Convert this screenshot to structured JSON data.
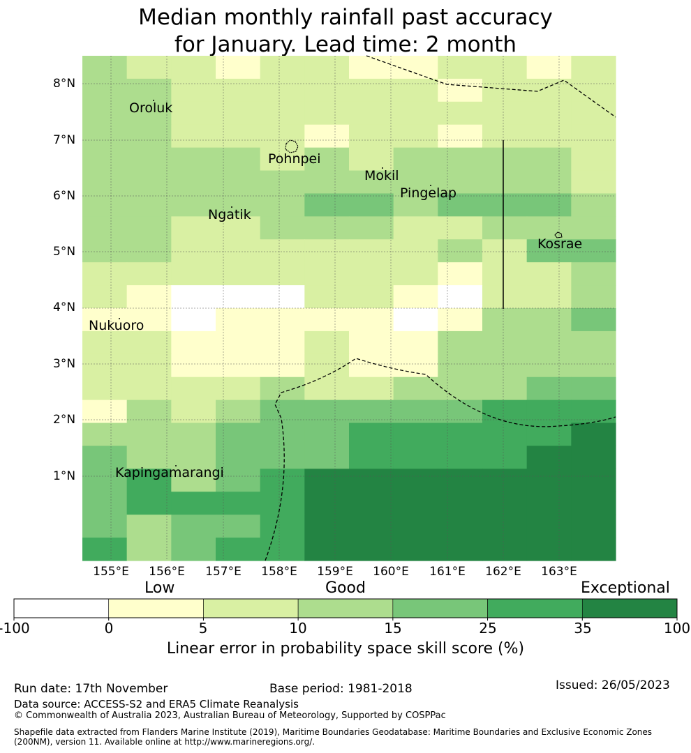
{
  "title": {
    "line1": "Median monthly rainfall past accuracy",
    "line2": "for January. Lead time: 2 month"
  },
  "map": {
    "lat_labels": [
      "8°N",
      "7°N",
      "6°N",
      "5°N",
      "4°N",
      "3°N",
      "2°N",
      "1°N"
    ],
    "lon_labels": [
      "155°E",
      "156°E",
      "157°E",
      "158°E",
      "159°E",
      "160°E",
      "161°E",
      "162°E",
      "163°E"
    ],
    "places": [
      "Oroluk",
      "Pohnpei",
      "Mokil",
      "Pingelap",
      "Ngatik",
      "Kosrae",
      "Nukuoro",
      "Kapingamarangi"
    ],
    "grid_levels": [
      [
        3,
        2,
        2,
        1,
        2,
        2,
        1,
        1,
        2,
        2,
        1,
        2
      ],
      [
        3,
        3,
        2,
        2,
        2,
        2,
        2,
        2,
        1,
        2,
        2,
        2
      ],
      [
        3,
        3,
        2,
        2,
        2,
        2,
        2,
        2,
        2,
        2,
        2,
        2
      ],
      [
        3,
        3,
        2,
        2,
        2,
        1,
        2,
        2,
        1,
        2,
        2,
        2
      ],
      [
        3,
        3,
        3,
        3,
        2,
        3,
        2,
        3,
        3,
        3,
        3,
        2
      ],
      [
        3,
        3,
        3,
        3,
        3,
        3,
        3,
        3,
        3,
        3,
        3,
        2
      ],
      [
        3,
        3,
        3,
        3,
        3,
        4,
        4,
        3,
        4,
        4,
        4,
        3
      ],
      [
        3,
        3,
        2,
        2,
        3,
        3,
        3,
        2,
        2,
        3,
        3,
        3
      ],
      [
        3,
        3,
        2,
        2,
        2,
        2,
        2,
        2,
        3,
        2,
        4,
        4
      ],
      [
        2,
        2,
        2,
        2,
        2,
        2,
        2,
        2,
        1,
        2,
        2,
        3
      ],
      [
        2,
        1,
        0,
        0,
        0,
        2,
        2,
        1,
        0,
        2,
        2,
        3
      ],
      [
        1,
        1,
        0,
        1,
        1,
        1,
        1,
        0,
        1,
        3,
        3,
        4
      ],
      [
        2,
        2,
        1,
        1,
        1,
        2,
        1,
        1,
        3,
        3,
        3,
        3
      ],
      [
        2,
        2,
        1,
        1,
        1,
        2,
        1,
        1,
        3,
        3,
        3,
        3
      ],
      [
        2,
        2,
        2,
        2,
        3,
        2,
        2,
        3,
        3,
        3,
        4,
        4
      ],
      [
        1,
        3,
        2,
        3,
        4,
        4,
        4,
        4,
        4,
        5,
        5,
        5
      ],
      [
        3,
        3,
        3,
        4,
        4,
        4,
        5,
        5,
        5,
        5,
        5,
        6
      ],
      [
        4,
        3,
        3,
        4,
        4,
        4,
        5,
        5,
        5,
        5,
        6,
        6
      ],
      [
        4,
        5,
        3,
        4,
        5,
        6,
        6,
        6,
        6,
        6,
        6,
        6
      ],
      [
        4,
        5,
        5,
        5,
        5,
        6,
        6,
        6,
        6,
        6,
        6,
        6
      ],
      [
        4,
        3,
        4,
        4,
        5,
        6,
        6,
        6,
        6,
        6,
        6,
        6
      ],
      [
        5,
        3,
        4,
        5,
        5,
        6,
        6,
        6,
        6,
        6,
        6,
        6
      ]
    ]
  },
  "legend": {
    "categories": [
      "Low",
      "Good",
      "Exceptional"
    ],
    "ticks": [
      "-100",
      "0",
      "5",
      "10",
      "15",
      "25",
      "35",
      "100"
    ],
    "colors": [
      "#ffffff",
      "#ffffcc",
      "#d9f0a3",
      "#addd8e",
      "#78c679",
      "#41ab5d",
      "#238443"
    ],
    "title": "Linear error in probability space skill score (%)"
  },
  "footer": {
    "run_date": "Run date: 17th November",
    "base_period": "Base period: 1981-2018",
    "issued": "Issued: 26/05/2023",
    "data_source": "Data source: ACCESS-S2 and ERA5 Climate Reanalysis",
    "copyright": "© Commonwealth of Australia 2023, Australian Bureau of Meteorology, Supported by COSPPac",
    "shapefile": "Shapefile data extracted from Flanders Marine Institute (2019), Maritime Boundaries Geodatabase: Maritime Boundaries and Exclusive Economic Zones (200NM), version 11. Available online at http://www.marineregions.org/."
  }
}
